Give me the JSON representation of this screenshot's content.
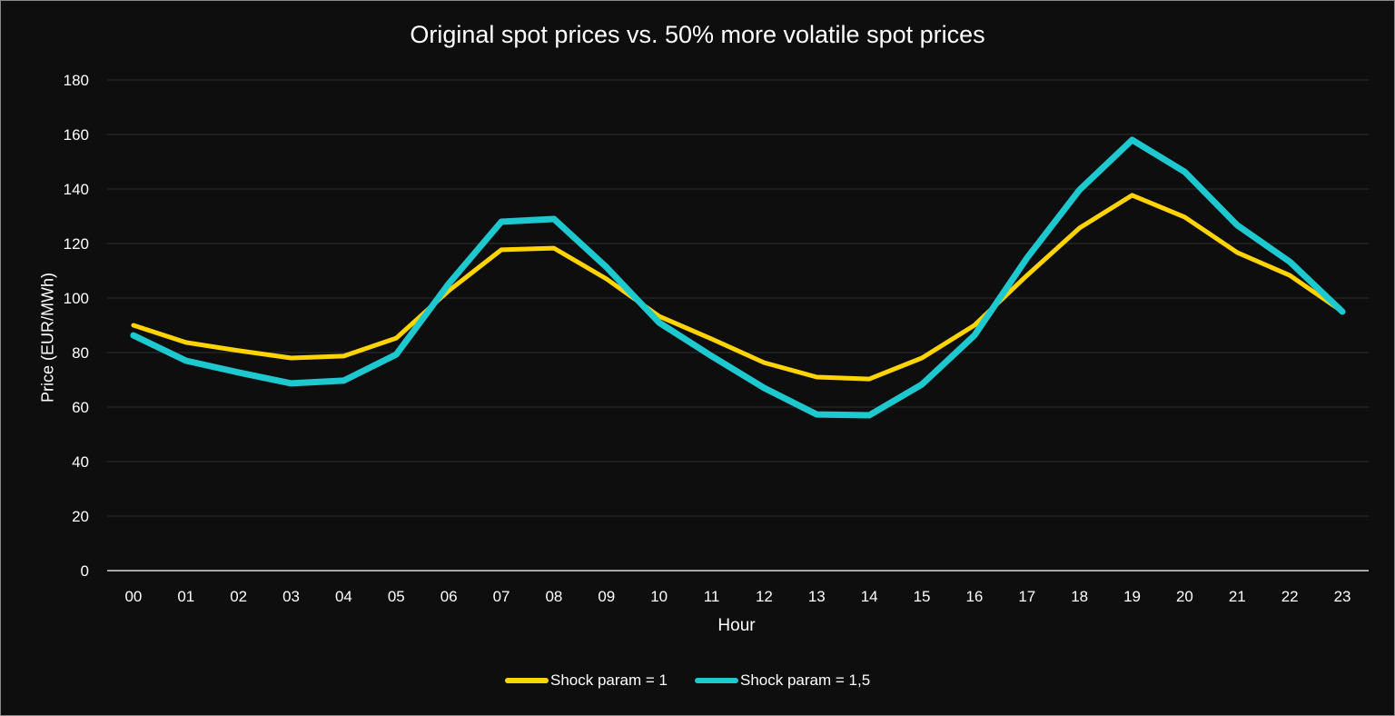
{
  "chart_data": {
    "type": "line",
    "title": "Original spot prices vs. 50% more volatile spot prices",
    "xlabel": "Hour",
    "ylabel": "Price (EUR/MWh)",
    "ylim": [
      0,
      180
    ],
    "yticks": [
      0,
      20,
      40,
      60,
      80,
      100,
      120,
      140,
      160,
      180
    ],
    "grid": true,
    "legend": "bottom",
    "categories": [
      "00",
      "01",
      "02",
      "03",
      "04",
      "05",
      "06",
      "07",
      "08",
      "09",
      "10",
      "11",
      "12",
      "13",
      "14",
      "15",
      "16",
      "17",
      "18",
      "19",
      "20",
      "21",
      "22",
      "23"
    ],
    "series": [
      {
        "name": "Shock param = 1",
        "color": "#ffd400",
        "values": [
          90,
          83.7,
          80.7,
          78,
          78.7,
          85.3,
          102.7,
          117.7,
          118.3,
          107,
          93.3,
          85,
          76.3,
          71,
          70.3,
          78,
          90,
          108.3,
          125.7,
          137.7,
          129.7,
          116.7,
          108.3,
          95
        ]
      },
      {
        "name": "Shock param = 1,5",
        "color": "#1ec8cf",
        "values": [
          86.3,
          77,
          72.7,
          68.7,
          69.7,
          79.3,
          105.3,
          128,
          129,
          111.3,
          91,
          78.7,
          67,
          57.3,
          57,
          68.3,
          86.3,
          114.7,
          139.7,
          158,
          146.3,
          126.7,
          113.3,
          95
        ]
      }
    ]
  }
}
